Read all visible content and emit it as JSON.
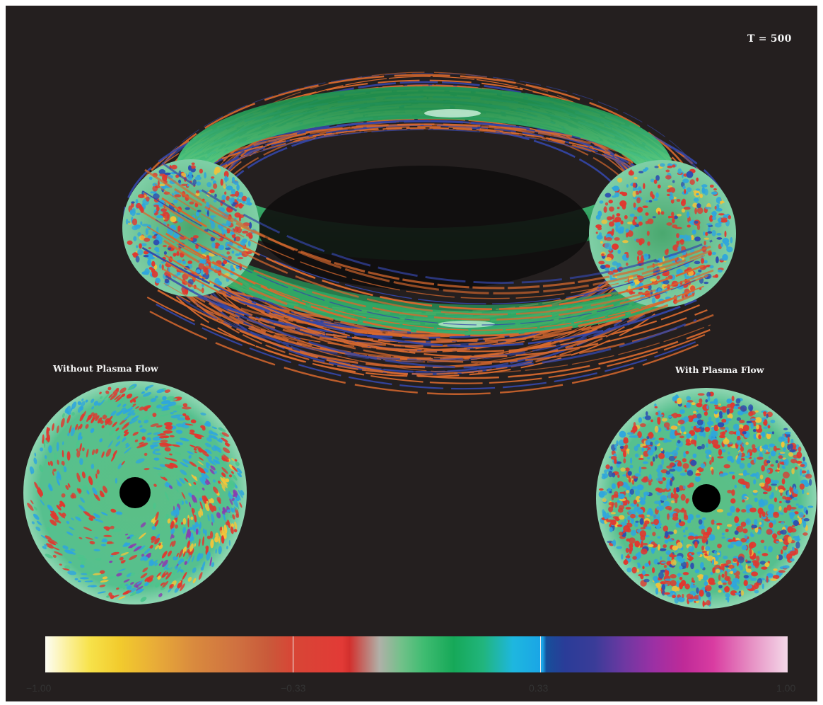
{
  "time_label": "T = 500",
  "panels": {
    "left_title": "Without Plasma Flow",
    "right_title": "With Plasma Flow"
  },
  "colorbar": {
    "ticks": [
      "−1.00",
      "−0.33",
      "0.33",
      "1.00"
    ],
    "range": [
      -1.0,
      1.0
    ]
  },
  "colors": {
    "background": "#241f1f",
    "field_lines_orange": "#d8692e",
    "field_lines_blue": "#3446a8",
    "plasma_green": "#4cc58c",
    "perturbation_red": "#e0382f",
    "perturbation_cyan": "#2fa6dd"
  }
}
